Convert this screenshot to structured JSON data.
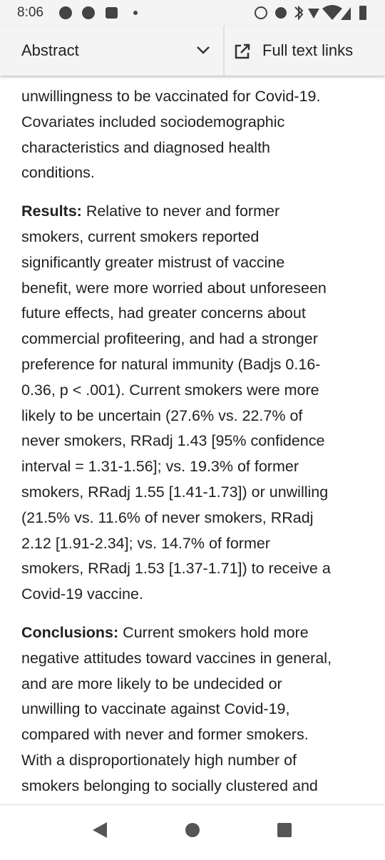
{
  "status_bar": {
    "time": "8:06"
  },
  "toolbar": {
    "section": "Abstract",
    "links": "Full text links"
  },
  "paragraphs": [
    {
      "lines": [
        "unwillingness to be vaccinated for Covid-19.",
        "Covariates included sociodemographic",
        "characteristics and diagnosed health",
        "conditions."
      ]
    },
    {
      "label": "Results:",
      "lines": [
        "Relative to never and former",
        "smokers, current smokers reported",
        "significantly greater mistrust of vaccine",
        "benefit, were more worried about unforeseen",
        "future effects, had greater concerns about",
        "commercial profiteering, and had a stronger",
        "preference for natural immunity (Badjs 0.16-",
        "0.36, p < .001). Current smokers were more",
        "likely to be uncertain (27.6% vs. 22.7% of",
        "never smokers, RRadj 1.43 [95% confidence",
        "interval = 1.31-1.56]; vs. 19.3% of former",
        "smokers, RRadj 1.55 [1.41-1.73]) or unwilling",
        "(21.5% vs. 11.6% of never smokers, RRadj",
        "2.12 [1.91-2.34]; vs. 14.7% of former",
        "smokers, RRadj 1.53 [1.37-1.71]) to receive a",
        "Covid-19 vaccine."
      ]
    },
    {
      "label": "Conclusions:",
      "lines": [
        "Current smokers hold more",
        "negative attitudes toward vaccines in general,",
        "and are more likely to be undecided or",
        "unwilling to vaccinate against Covid-19,",
        "compared with never and former smokers.",
        "With a disproportionately high number of",
        "smokers belonging to socially clustered and"
      ]
    }
  ]
}
